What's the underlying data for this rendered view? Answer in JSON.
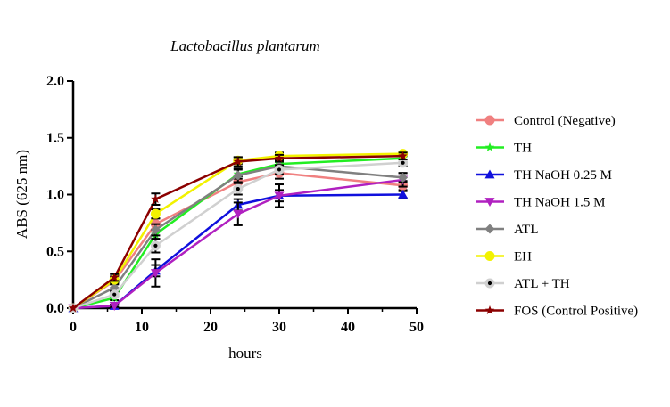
{
  "chart_data": {
    "type": "line",
    "title": "Lactobacillus plantarum",
    "xlabel": "hours",
    "ylabel": "ABS (625 nm)",
    "xlim": [
      0,
      50
    ],
    "ylim": [
      0,
      2
    ],
    "x_ticks": [
      "0",
      "10",
      "20",
      "30",
      "40",
      "50"
    ],
    "y_ticks": [
      "0.0",
      "0.5",
      "1.0",
      "1.5",
      "2.0"
    ],
    "grid": false,
    "legend_position": "right",
    "x": [
      0,
      6,
      12,
      24,
      30,
      48
    ],
    "series": [
      {
        "name": "Control (Negative)",
        "color": "#f08080",
        "marker": "circle",
        "values": [
          0.0,
          0.24,
          0.74,
          1.11,
          1.19,
          1.08
        ],
        "errors": [
          0.0,
          0.03,
          0.05,
          0.05,
          0.05,
          0.04
        ]
      },
      {
        "name": "TH",
        "color": "#22ee22",
        "marker": "star",
        "values": [
          0.0,
          0.09,
          0.65,
          1.18,
          1.27,
          1.32
        ],
        "errors": [
          0.0,
          0.02,
          0.04,
          0.04,
          0.03,
          0.03
        ]
      },
      {
        "name": "TH NaOH 0.25 M",
        "color": "#1010dd",
        "marker": "triangle-up",
        "values": [
          0.0,
          0.02,
          0.33,
          0.91,
          0.99,
          1.0
        ],
        "errors": [
          0.0,
          0.01,
          0.05,
          0.05,
          0.05,
          0.03
        ]
      },
      {
        "name": "TH NaOH 1.5 M",
        "color": "#b020c0",
        "marker": "triangle-down",
        "values": [
          0.0,
          0.02,
          0.31,
          0.83,
          0.99,
          1.13
        ],
        "errors": [
          0.0,
          0.01,
          0.12,
          0.1,
          0.1,
          0.06
        ]
      },
      {
        "name": "ATL",
        "color": "#808080",
        "marker": "diamond",
        "values": [
          0.0,
          0.18,
          0.69,
          1.17,
          1.25,
          1.15
        ],
        "errors": [
          0.0,
          0.03,
          0.05,
          0.06,
          0.04,
          0.04
        ]
      },
      {
        "name": "EH",
        "color": "#f2f200",
        "marker": "circle",
        "values": [
          0.0,
          0.25,
          0.83,
          1.3,
          1.34,
          1.36
        ],
        "errors": [
          0.0,
          0.03,
          0.04,
          0.03,
          0.03,
          0.02
        ]
      },
      {
        "name": "ATL + TH",
        "color": "#d0d0d0",
        "marker": "dot",
        "values": [
          0.0,
          0.12,
          0.55,
          1.05,
          1.22,
          1.28
        ],
        "errors": [
          0.0,
          0.02,
          0.06,
          0.05,
          0.04,
          0.03
        ]
      },
      {
        "name": "FOS (Control Positive)",
        "color": "#8b0000",
        "marker": "star",
        "values": [
          0.0,
          0.27,
          0.96,
          1.29,
          1.32,
          1.34
        ],
        "errors": [
          0.0,
          0.03,
          0.05,
          0.04,
          0.03,
          0.03
        ]
      }
    ]
  }
}
